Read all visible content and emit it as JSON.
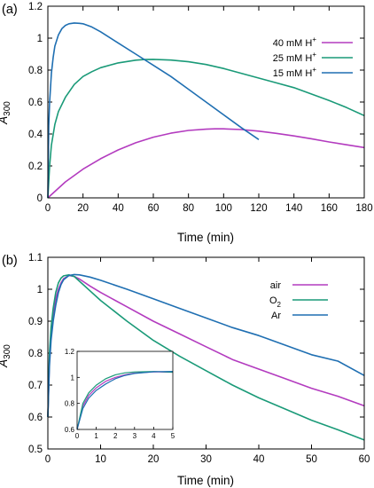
{
  "chart_data": [
    {
      "panel_label": "(a)",
      "type": "line",
      "xlabel": "Time (min)",
      "ylabel_main": "A",
      "ylabel_sub": "300",
      "xlim": [
        0,
        180
      ],
      "ylim": [
        0,
        1.2
      ],
      "xticks": [
        0,
        20,
        40,
        60,
        80,
        100,
        120,
        140,
        160,
        180
      ],
      "yticks": [
        0,
        0.2,
        0.4,
        0.6,
        0.8,
        1,
        1.2
      ],
      "legend": "top-right",
      "grid": false,
      "series": [
        {
          "name": "40 mM H",
          "sup": "+",
          "color": "#b33bbf",
          "x": [
            0,
            5,
            10,
            20,
            30,
            40,
            50,
            60,
            70,
            80,
            90,
            95,
            100,
            110,
            120,
            130,
            140,
            150,
            160,
            170,
            180
          ],
          "y": [
            0,
            0.05,
            0.1,
            0.18,
            0.245,
            0.3,
            0.345,
            0.38,
            0.405,
            0.422,
            0.43,
            0.432,
            0.432,
            0.428,
            0.418,
            0.404,
            0.388,
            0.37,
            0.35,
            0.332,
            0.315
          ]
        },
        {
          "name": "25 mM H",
          "sup": "+",
          "color": "#1a9a78",
          "x": [
            0,
            1,
            2,
            4,
            6,
            10,
            15,
            20,
            25,
            30,
            40,
            50,
            55,
            60,
            70,
            80,
            90,
            100,
            110,
            120,
            130,
            140,
            150,
            160,
            170,
            180
          ],
          "y": [
            0,
            0.2,
            0.33,
            0.46,
            0.54,
            0.63,
            0.71,
            0.76,
            0.79,
            0.815,
            0.845,
            0.862,
            0.866,
            0.867,
            0.863,
            0.852,
            0.835,
            0.81,
            0.78,
            0.75,
            0.72,
            0.69,
            0.65,
            0.61,
            0.565,
            0.515
          ]
        },
        {
          "name": "15 mM H",
          "sup": "+",
          "color": "#1f6fb2",
          "x": [
            0,
            0.5,
            1,
            2,
            3,
            4,
            6,
            8,
            10,
            12,
            15,
            18,
            20,
            25,
            30,
            40,
            50,
            60,
            70,
            80,
            90,
            100,
            110,
            120
          ],
          "y": [
            0,
            0.45,
            0.6,
            0.78,
            0.88,
            0.95,
            1.02,
            1.06,
            1.08,
            1.09,
            1.095,
            1.093,
            1.09,
            1.07,
            1.04,
            0.97,
            0.9,
            0.83,
            0.76,
            0.68,
            0.6,
            0.52,
            0.44,
            0.365
          ]
        }
      ]
    },
    {
      "panel_label": "(b)",
      "type": "line",
      "xlabel": "Time (min)",
      "ylabel_main": "A",
      "ylabel_sub": "300",
      "xlim": [
        0,
        60
      ],
      "ylim": [
        0.5,
        1.1
      ],
      "xticks": [
        0,
        10,
        20,
        30,
        40,
        50,
        60
      ],
      "yticks": [
        0.5,
        0.6,
        0.7,
        0.8,
        0.9,
        1,
        1.1
      ],
      "legend": "top-right",
      "grid": false,
      "series": [
        {
          "name": "air",
          "sub": "",
          "color": "#b33bbf",
          "x": [
            0,
            0.3,
            0.6,
            1,
            1.5,
            2,
            2.5,
            3,
            4,
            5,
            6,
            8,
            10,
            15,
            20,
            25,
            30,
            35,
            40,
            45,
            50,
            55,
            60
          ],
          "y": [
            0.6,
            0.78,
            0.86,
            0.92,
            0.97,
            1.0,
            1.02,
            1.033,
            1.043,
            1.04,
            1.032,
            1.01,
            0.99,
            0.945,
            0.9,
            0.86,
            0.82,
            0.78,
            0.75,
            0.72,
            0.69,
            0.665,
            0.635
          ]
        },
        {
          "name": "O",
          "sub": "2",
          "color": "#1a9a78",
          "x": [
            0,
            0.3,
            0.6,
            1,
            1.5,
            2,
            2.5,
            3,
            4,
            5,
            6,
            8,
            10,
            15,
            20,
            25,
            30,
            35,
            40,
            45,
            50,
            55,
            60
          ],
          "y": [
            0.6,
            0.8,
            0.88,
            0.94,
            0.99,
            1.02,
            1.035,
            1.042,
            1.045,
            1.04,
            1.025,
            0.995,
            0.965,
            0.9,
            0.84,
            0.79,
            0.745,
            0.7,
            0.66,
            0.625,
            0.59,
            0.56,
            0.528
          ]
        },
        {
          "name": "Ar",
          "sub": "",
          "color": "#1f6fb2",
          "x": [
            0,
            0.3,
            0.6,
            1,
            1.5,
            2,
            2.5,
            3,
            4,
            5,
            6,
            8,
            10,
            15,
            20,
            25,
            30,
            35,
            40,
            45,
            50,
            55,
            60
          ],
          "y": [
            0.6,
            0.76,
            0.84,
            0.9,
            0.95,
            0.99,
            1.015,
            1.03,
            1.043,
            1.046,
            1.045,
            1.038,
            1.028,
            1.0,
            0.97,
            0.94,
            0.91,
            0.88,
            0.855,
            0.825,
            0.795,
            0.775,
            0.73
          ]
        }
      ],
      "inset": {
        "xlim": [
          0,
          5
        ],
        "ylim": [
          0.6,
          1.2
        ],
        "xticks": [
          0,
          1,
          2,
          3,
          4,
          5
        ],
        "yticks": [
          0.6,
          0.8,
          1,
          1.2
        ]
      }
    }
  ]
}
